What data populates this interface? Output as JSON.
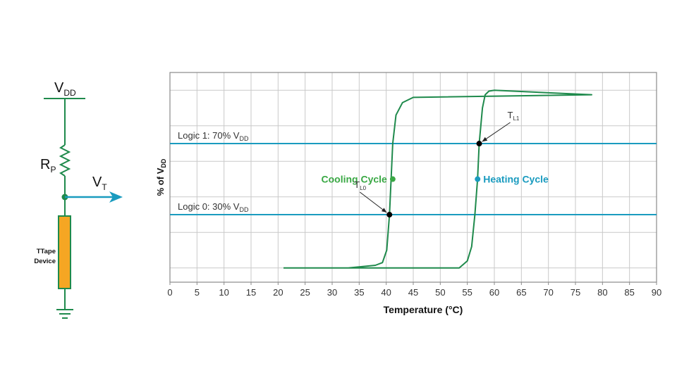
{
  "circuit": {
    "vdd": {
      "main": "V",
      "sub": "DD"
    },
    "rp": {
      "main": "R",
      "sub": "P"
    },
    "vt": {
      "main": "V",
      "sub": "T"
    },
    "device_line1": "TTape",
    "device_line2": "Device",
    "colors": {
      "wire": "#1f8a4c",
      "device": "#f5a623",
      "device_border": "#1f8a4c",
      "arrow": "#1a9bbf"
    }
  },
  "chart_data": {
    "type": "line",
    "xlabel": "Temperature (°C)",
    "ylabel": {
      "main": "% of V",
      "sub": "DD"
    },
    "x_ticks": [
      0,
      5,
      10,
      15,
      20,
      25,
      30,
      35,
      40,
      45,
      50,
      55,
      60,
      65,
      70,
      75,
      80,
      85,
      90
    ],
    "xlim": [
      0,
      90
    ],
    "ylim": [
      -8,
      110
    ],
    "grid": true,
    "y_gridlines": [
      0,
      20,
      40,
      60,
      80,
      100
    ],
    "colors": {
      "curve": "#1f8a4c",
      "threshold": "#1a9bbf",
      "cooling_label": "#3aa845",
      "heating_label": "#1a9bbf",
      "grid": "#c9c9c9",
      "point": "#000000"
    },
    "thresholds": [
      {
        "name_main": "Logic 1: 70% V",
        "name_sub": "DD",
        "y": 70
      },
      {
        "name_main": "Logic 0: 30% V",
        "name_sub": "DD",
        "y": 30
      }
    ],
    "hysteresis_curve": [
      [
        33,
        0
      ],
      [
        38,
        1.5
      ],
      [
        39.3,
        3
      ],
      [
        40.1,
        10
      ],
      [
        40.6,
        30
      ],
      [
        40.9,
        50
      ],
      [
        41.2,
        70
      ],
      [
        41.8,
        86
      ],
      [
        43,
        93
      ],
      [
        45,
        96
      ],
      [
        78,
        97.5
      ],
      [
        60,
        100
      ],
      [
        59,
        99.5
      ],
      [
        58.3,
        97.5
      ],
      [
        57.8,
        90
      ],
      [
        57.2,
        70
      ],
      [
        56.9,
        50
      ],
      [
        56.4,
        30
      ],
      [
        55.8,
        12
      ],
      [
        55,
        4
      ],
      [
        53.5,
        0
      ],
      [
        21,
        0
      ]
    ],
    "points": [
      {
        "label_main": "T",
        "label_sub": "L0",
        "x": 40.6,
        "y": 30
      },
      {
        "label_main": "T",
        "label_sub": "L1",
        "x": 57.2,
        "y": 70
      }
    ],
    "annotations": [
      {
        "text": "Cooling Cycle",
        "x": 41.2,
        "y": 50
      },
      {
        "text": "Heating Cycle",
        "x": 56.9,
        "y": 50
      }
    ]
  }
}
